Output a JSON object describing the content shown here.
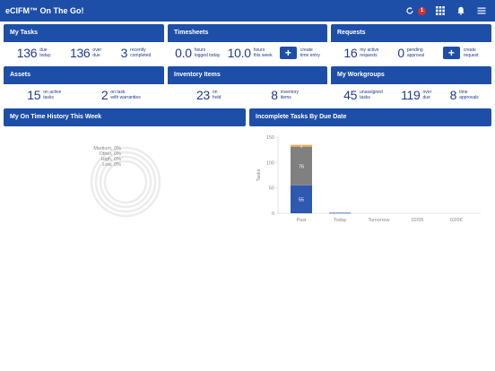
{
  "header": {
    "title": "eCIFM™ On The Go!",
    "notification_count": "1"
  },
  "tiles": {
    "my_tasks": {
      "title": "My Tasks",
      "stats": [
        {
          "value": "136",
          "label": "due\ntoday"
        },
        {
          "value": "136",
          "label": "over\ndue"
        },
        {
          "value": "3",
          "label": "recently\ncompleted"
        }
      ]
    },
    "timesheets": {
      "title": "Timesheets",
      "stats": [
        {
          "value": "0.0",
          "label": "hours\nlogged today"
        },
        {
          "value": "10.0",
          "label": "hours\nthis week"
        }
      ],
      "action_label": "create\ntime entry"
    },
    "requests": {
      "title": "Requests",
      "stats": [
        {
          "value": "16",
          "label": "my active\nrequests"
        },
        {
          "value": "0",
          "label": "pending\napproval"
        }
      ],
      "action_label": "create\nrequest"
    },
    "assets": {
      "title": "Assets",
      "stats": [
        {
          "value": "15",
          "label": "on active\ntasks"
        },
        {
          "value": "2",
          "label": "on task\nwith warranties"
        }
      ]
    },
    "inventory": {
      "title": "Inventory Items",
      "stats": [
        {
          "value": "23",
          "label": "on\nhold"
        },
        {
          "value": "8",
          "label": "inventory\nitems"
        }
      ]
    },
    "workgroups": {
      "title": "My Workgroups",
      "stats": [
        {
          "value": "45",
          "label": "unassigned\ntasks"
        },
        {
          "value": "119",
          "label": "over\ndue"
        },
        {
          "value": "8",
          "label": "time\napprovals"
        }
      ]
    }
  },
  "panels": {
    "on_time": {
      "title": "My On Time History This Week",
      "legend": [
        "Medium, 0%",
        "Other, 0%",
        "High, 0%",
        "Low, 0%"
      ]
    },
    "incomplete": {
      "title": "Incomplete Tasks By Due Date"
    }
  },
  "colors": {
    "primary": "#1e4fa8",
    "bar_blue": "#2f58b0",
    "bar_gray": "#808080",
    "bar_orange": "#e8a04a",
    "badge": "#d9312b"
  },
  "chart_data": {
    "type": "bar",
    "stacked": true,
    "categories": [
      "Past",
      "Today",
      "Tomorrow",
      "02/05",
      "02/06"
    ],
    "series": [
      {
        "values": [
          55,
          1,
          0,
          0,
          0
        ],
        "color": "#2f58b0"
      },
      {
        "values": [
          76,
          0,
          0,
          0,
          0
        ],
        "color": "#808080"
      },
      {
        "values": [
          3,
          0,
          0,
          0,
          0
        ],
        "color": "#e8a04a"
      },
      {
        "values": [
          1,
          0,
          0,
          0,
          0
        ],
        "color": "#f0c070"
      }
    ],
    "data_labels": [
      {
        "category": "Past",
        "series": 0,
        "text": "55"
      },
      {
        "category": "Past",
        "series": 1,
        "text": "76"
      },
      {
        "category": "Past",
        "series": 2,
        "text": "3"
      }
    ],
    "ylabel": "Tasks",
    "ylim": [
      0,
      150
    ],
    "yticks": [
      "0",
      "50",
      "100",
      "150"
    ]
  }
}
